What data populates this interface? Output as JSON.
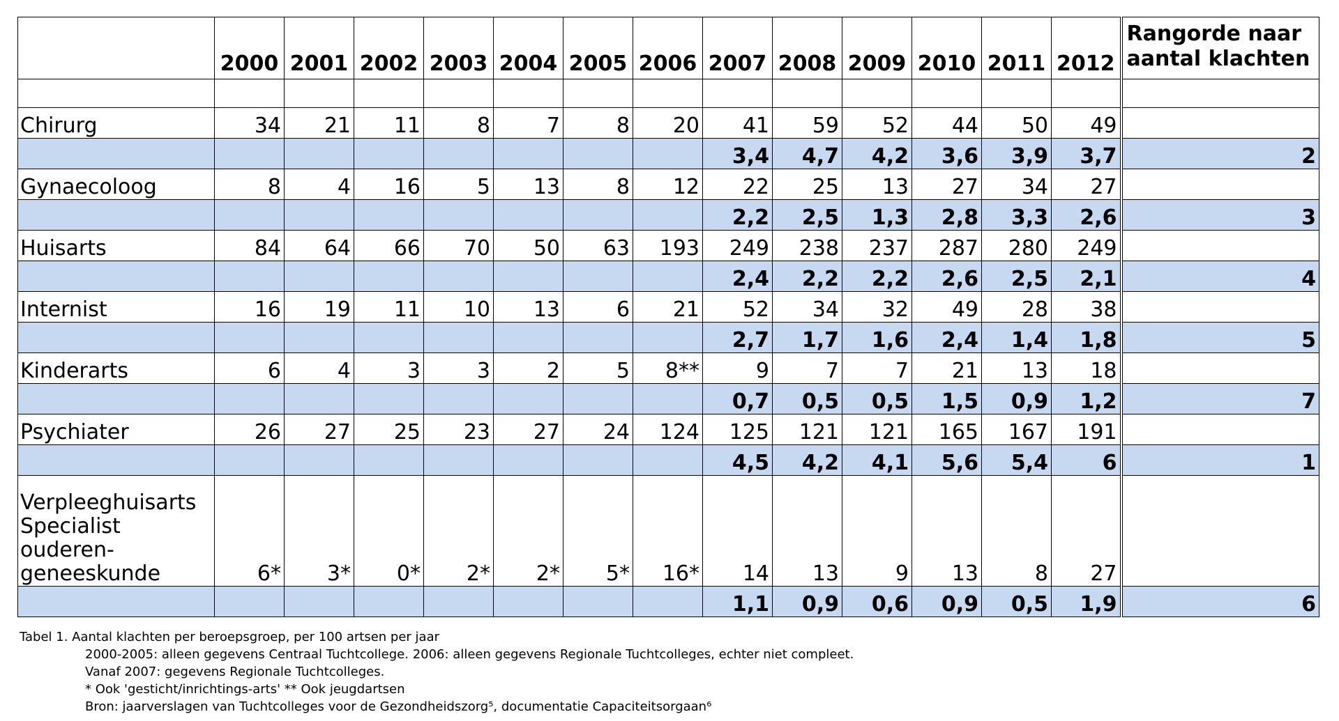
{
  "table": {
    "years": [
      "2000",
      "2001",
      "2002",
      "2003",
      "2004",
      "2005",
      "2006",
      "2007",
      "2008",
      "2009",
      "2010",
      "2011",
      "2012"
    ],
    "rank_header_line1": "Rangorde naar",
    "rank_header_line2": "aantal klachten",
    "groups": [
      {
        "name": "Chirurg",
        "counts": [
          "34",
          "21",
          "11",
          "8",
          "7",
          "8",
          "20",
          "41",
          "59",
          "52",
          "44",
          "50",
          "49"
        ],
        "rates": [
          "",
          "",
          "",
          "",
          "",
          "",
          "",
          "3,4",
          "4,7",
          "4,2",
          "3,6",
          "3,9",
          "3,7"
        ],
        "rank": "2"
      },
      {
        "name": "Gynaecoloog",
        "counts": [
          "8",
          "4",
          "16",
          "5",
          "13",
          "8",
          "12",
          "22",
          "25",
          "13",
          "27",
          "34",
          "27"
        ],
        "rates": [
          "",
          "",
          "",
          "",
          "",
          "",
          "",
          "2,2",
          "2,5",
          "1,3",
          "2,8",
          "3,3",
          "2,6"
        ],
        "rank": "3"
      },
      {
        "name": "Huisarts",
        "counts": [
          "84",
          "64",
          "66",
          "70",
          "50",
          "63",
          "193",
          "249",
          "238",
          "237",
          "287",
          "280",
          "249"
        ],
        "rates": [
          "",
          "",
          "",
          "",
          "",
          "",
          "",
          "2,4",
          "2,2",
          "2,2",
          "2,6",
          "2,5",
          "2,1"
        ],
        "rank": "4"
      },
      {
        "name": "Internist",
        "counts": [
          "16",
          "19",
          "11",
          "10",
          "13",
          "6",
          "21",
          "52",
          "34",
          "32",
          "49",
          "28",
          "38"
        ],
        "rates": [
          "",
          "",
          "",
          "",
          "",
          "",
          "",
          "2,7",
          "1,7",
          "1,6",
          "2,4",
          "1,4",
          "1,8"
        ],
        "rank": "5"
      },
      {
        "name": "Kinderarts",
        "counts": [
          "6",
          "4",
          "3",
          "3",
          "2",
          "5",
          "8**",
          "9",
          "7",
          "7",
          "21",
          "13",
          "18"
        ],
        "rates": [
          "",
          "",
          "",
          "",
          "",
          "",
          "",
          "0,7",
          "0,5",
          "0,5",
          "1,5",
          "0,9",
          "1,2"
        ],
        "rank": "7"
      },
      {
        "name": "Psychiater",
        "counts": [
          "26",
          "27",
          "25",
          "23",
          "27",
          "24",
          "124",
          "125",
          "121",
          "121",
          "165",
          "167",
          "191"
        ],
        "rates": [
          "",
          "",
          "",
          "",
          "",
          "",
          "",
          "4,5",
          "4,2",
          "4,1",
          "5,6",
          "5,4",
          "6"
        ],
        "rank": "1"
      },
      {
        "name": "Verpleeghuisarts Specialist ouderen-geneeskunde",
        "name_lines": [
          "Verpleeghuisarts",
          "Specialist",
          "ouderen-",
          "geneeskunde"
        ],
        "counts": [
          "6*",
          "3*",
          "0*",
          "2*",
          "2*",
          "5*",
          "16*",
          "14",
          "13",
          "9",
          "13",
          "8",
          "27"
        ],
        "rates": [
          "",
          "",
          "",
          "",
          "",
          "",
          "",
          "1,1",
          "0,9",
          "0,6",
          "0,9",
          "0,5",
          "1,9"
        ],
        "rank": "6"
      }
    ]
  },
  "caption": {
    "title": "Tabel 1. Aantal klachten per beroepsgroep, per 100 artsen per jaar",
    "note1": "2000-2005: alleen gegevens Centraal Tuchtcollege. 2006: alleen gegevens Regionale Tuchtcolleges, echter niet compleet.",
    "note2": "Vanaf 2007: gegevens Regionale Tuchtcolleges.",
    "note3": "* Ook 'gesticht/inrichtings-arts'   ** Ook jeugdartsen",
    "note4": "Bron: jaarverslagen van Tuchtcolleges voor de Gezondheidszorg⁵, documentatie Capaciteitsorgaan⁶"
  }
}
